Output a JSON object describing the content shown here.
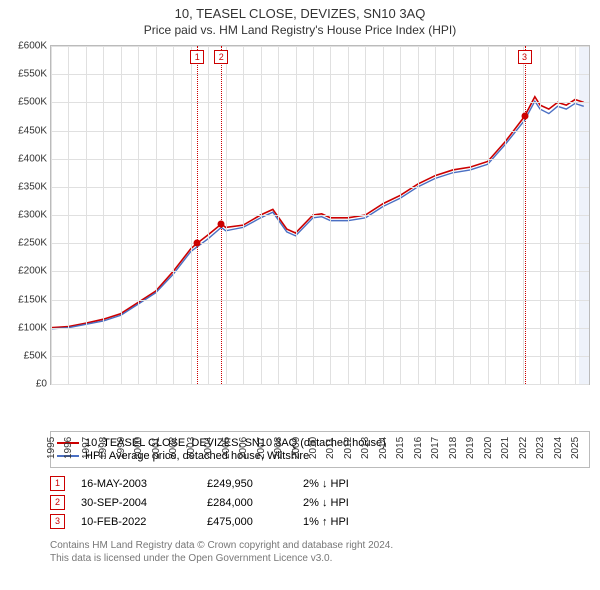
{
  "title_line1": "10, TEASEL CLOSE, DEVIZES, SN10 3AQ",
  "title_line2": "Price paid vs. HM Land Registry's House Price Index (HPI)",
  "chart": {
    "type": "line",
    "background_color": "#ffffff",
    "grid_color": "#e0e0e0",
    "border_color": "#bbbbbb",
    "x": {
      "min": 1995,
      "max": 2025.8,
      "ticks": [
        1995,
        1996,
        1997,
        1998,
        1999,
        2000,
        2001,
        2002,
        2003,
        2004,
        2005,
        2006,
        2007,
        2008,
        2009,
        2010,
        2011,
        2012,
        2013,
        2014,
        2015,
        2016,
        2017,
        2018,
        2019,
        2020,
        2021,
        2022,
        2023,
        2024,
        2025
      ]
    },
    "y": {
      "min": 0,
      "max": 600000,
      "ticks": [
        0,
        50000,
        100000,
        150000,
        200000,
        250000,
        300000,
        350000,
        400000,
        450000,
        500000,
        550000,
        600000
      ],
      "tick_labels": [
        "£0",
        "£50K",
        "£100K",
        "£150K",
        "£200K",
        "£250K",
        "£300K",
        "£350K",
        "£400K",
        "£450K",
        "£500K",
        "£550K",
        "£600K"
      ]
    },
    "series": [
      {
        "name": "10, TEASEL CLOSE, DEVIZES, SN10 3AQ (detached house)",
        "color": "#cc0000",
        "width": 1.6,
        "points": [
          [
            1995,
            100000
          ],
          [
            1996,
            102000
          ],
          [
            1997,
            108000
          ],
          [
            1998,
            115000
          ],
          [
            1999,
            125000
          ],
          [
            2000,
            145000
          ],
          [
            2001,
            165000
          ],
          [
            2002,
            200000
          ],
          [
            2003,
            240000
          ],
          [
            2003.37,
            249950
          ],
          [
            2004,
            265000
          ],
          [
            2004.75,
            284000
          ],
          [
            2005,
            278000
          ],
          [
            2006,
            282000
          ],
          [
            2007,
            300000
          ],
          [
            2007.7,
            310000
          ],
          [
            2008.5,
            275000
          ],
          [
            2009,
            268000
          ],
          [
            2010,
            300000
          ],
          [
            2010.5,
            302000
          ],
          [
            2011,
            295000
          ],
          [
            2012,
            295000
          ],
          [
            2013,
            300000
          ],
          [
            2014,
            320000
          ],
          [
            2015,
            335000
          ],
          [
            2016,
            355000
          ],
          [
            2017,
            370000
          ],
          [
            2018,
            380000
          ],
          [
            2019,
            385000
          ],
          [
            2020,
            395000
          ],
          [
            2021,
            430000
          ],
          [
            2022.11,
            475000
          ],
          [
            2022.7,
            510000
          ],
          [
            2023,
            495000
          ],
          [
            2023.5,
            488000
          ],
          [
            2024,
            500000
          ],
          [
            2024.5,
            495000
          ],
          [
            2025,
            505000
          ],
          [
            2025.5,
            500000
          ]
        ]
      },
      {
        "name": "HPI: Average price, detached house, Wiltshire",
        "color": "#4a6fc3",
        "width": 1.4,
        "points": [
          [
            1995,
            98000
          ],
          [
            1996,
            100000
          ],
          [
            1997,
            106000
          ],
          [
            1998,
            112000
          ],
          [
            1999,
            122000
          ],
          [
            2000,
            142000
          ],
          [
            2001,
            162000
          ],
          [
            2002,
            195000
          ],
          [
            2003,
            235000
          ],
          [
            2004,
            258000
          ],
          [
            2004.75,
            278000
          ],
          [
            2005,
            272000
          ],
          [
            2006,
            278000
          ],
          [
            2007,
            295000
          ],
          [
            2007.7,
            305000
          ],
          [
            2008.5,
            270000
          ],
          [
            2009,
            263000
          ],
          [
            2010,
            295000
          ],
          [
            2010.5,
            297000
          ],
          [
            2011,
            290000
          ],
          [
            2012,
            290000
          ],
          [
            2013,
            295000
          ],
          [
            2014,
            315000
          ],
          [
            2015,
            330000
          ],
          [
            2016,
            350000
          ],
          [
            2017,
            365000
          ],
          [
            2018,
            375000
          ],
          [
            2019,
            380000
          ],
          [
            2020,
            390000
          ],
          [
            2021,
            425000
          ],
          [
            2022.11,
            468000
          ],
          [
            2022.7,
            502000
          ],
          [
            2023,
            488000
          ],
          [
            2023.5,
            480000
          ],
          [
            2024,
            493000
          ],
          [
            2024.5,
            488000
          ],
          [
            2025,
            498000
          ],
          [
            2025.5,
            493000
          ]
        ]
      }
    ],
    "sale_markers": [
      {
        "n": "1",
        "x": 2003.37,
        "y": 249950,
        "color": "#cc0000"
      },
      {
        "n": "2",
        "x": 2004.75,
        "y": 284000,
        "color": "#cc0000"
      },
      {
        "n": "3",
        "x": 2022.11,
        "y": 475000,
        "color": "#cc0000"
      }
    ],
    "vline_color": "#cc0000",
    "shade": {
      "from": 2025.2,
      "to": 2025.8,
      "color": "#eef2fa"
    }
  },
  "legend": {
    "items": [
      {
        "label": "10, TEASEL CLOSE, DEVIZES, SN10 3AQ (detached house)",
        "color": "#cc0000"
      },
      {
        "label": "HPI: Average price, detached house, Wiltshire",
        "color": "#4a6fc3"
      }
    ]
  },
  "events": [
    {
      "n": "1",
      "date": "16-MAY-2003",
      "price": "£249,950",
      "delta": "2% ↓ HPI",
      "border": "#cc0000"
    },
    {
      "n": "2",
      "date": "30-SEP-2004",
      "price": "£284,000",
      "delta": "2% ↓ HPI",
      "border": "#cc0000"
    },
    {
      "n": "3",
      "date": "10-FEB-2022",
      "price": "£475,000",
      "delta": "1% ↑ HPI",
      "border": "#cc0000"
    }
  ],
  "footer_line1": "Contains HM Land Registry data © Crown copyright and database right 2024.",
  "footer_line2": "This data is licensed under the Open Government Licence v3.0."
}
